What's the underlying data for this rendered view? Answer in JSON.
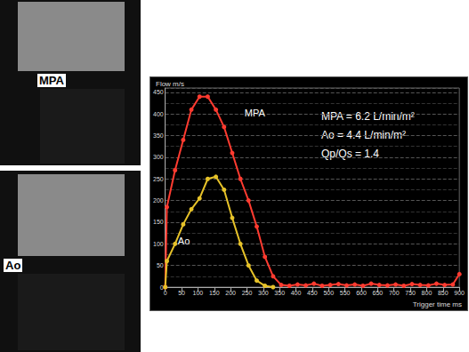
{
  "panels": [
    {
      "label": "MPA"
    },
    {
      "label": "Ao"
    }
  ],
  "chart_data": {
    "type": "line",
    "title": "Flow m/s",
    "x_label": "Trigger time ms",
    "annotations": [
      "MPA = 6.2 L/min/m²",
      "Ao = 4.4 L/min/m²",
      "Qp/Qs = 1.4"
    ],
    "xlim": [
      0,
      900
    ],
    "xticks": [
      0,
      50,
      100,
      150,
      200,
      250,
      300,
      350,
      400,
      450,
      500,
      550,
      600,
      650,
      700,
      750,
      800,
      850,
      900
    ],
    "ylim": [
      0,
      460
    ],
    "yticks": [
      0,
      50,
      100,
      150,
      200,
      250,
      300,
      350,
      400,
      450
    ],
    "grid": true,
    "series": [
      {
        "name": "MPA",
        "color": "#ff3b30",
        "marker": "circle",
        "x": [
          0,
          5,
          30,
          55,
          80,
          105,
          130,
          155,
          180,
          205,
          230,
          255,
          280,
          305,
          330,
          355,
          380,
          405,
          430,
          455,
          480,
          505,
          530,
          555,
          580,
          605,
          630,
          655,
          680,
          705,
          730,
          755,
          780,
          805,
          830,
          855,
          880,
          900
        ],
        "values": [
          0,
          185,
          270,
          340,
          410,
          440,
          440,
          410,
          370,
          310,
          250,
          200,
          140,
          70,
          25,
          5,
          3,
          6,
          4,
          8,
          3,
          5,
          7,
          4,
          6,
          3,
          8,
          5,
          4,
          6,
          3,
          7,
          5,
          4,
          8,
          5,
          6,
          30
        ]
      },
      {
        "name": "Ao",
        "color": "#e6c229",
        "marker": "circle",
        "x": [
          0,
          5,
          30,
          55,
          80,
          105,
          130,
          155,
          180,
          205,
          230,
          255,
          280,
          305,
          330
        ],
        "values": [
          0,
          60,
          100,
          145,
          180,
          205,
          250,
          255,
          225,
          160,
          100,
          50,
          15,
          3,
          0
        ]
      }
    ]
  }
}
